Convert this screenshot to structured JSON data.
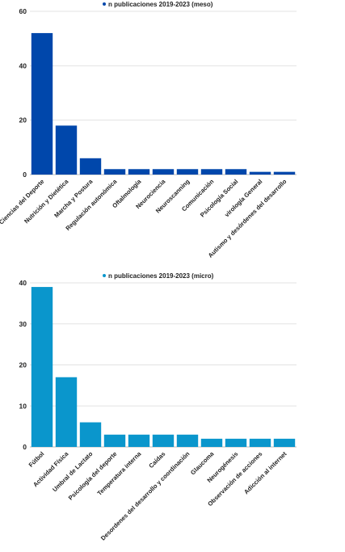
{
  "chart_data": [
    {
      "type": "bar",
      "legend": "n publicaciones 2019-2023 (meso)",
      "legend_position": "top",
      "color": "#0047ab",
      "grid": true,
      "ylim": [
        0,
        60
      ],
      "yticks": [
        0,
        20,
        40,
        60
      ],
      "categories": [
        "Ciencias del Deporte",
        "Nutrición y Dietética",
        "Marcha y Postura",
        "Regulación autonómica",
        "Oftalmología",
        "Neurociencia",
        "Neuroscanning",
        "Comunicación",
        "Psicología Social",
        "virología General",
        "Autismo y desórdenes del desarrollo"
      ],
      "series": [
        {
          "name": "n publicaciones 2019-2023 (meso)",
          "values": [
            52,
            18,
            6,
            2,
            2,
            2,
            2,
            2,
            2,
            1,
            1
          ]
        }
      ]
    },
    {
      "type": "bar",
      "legend": "n publicaciones 2019-2023 (micro)",
      "legend_position": "top",
      "color": "#0a96cc",
      "grid": true,
      "ylim": [
        0,
        40
      ],
      "yticks": [
        0,
        10,
        20,
        30,
        40
      ],
      "categories": [
        "Fútbol",
        "Actividad Física",
        "Umbral de Lactato",
        "Psicología del deporte",
        "Temperatura interna",
        "Caídas",
        "Desordenes del desarrollo y coordinación",
        "Glaucoma",
        "Neurogénesis",
        "Observación de acciones",
        "Adicción al internet"
      ],
      "series": [
        {
          "name": "n publicaciones 2019-2023 (micro)",
          "values": [
            39,
            17,
            6,
            3,
            3,
            3,
            3,
            2,
            2,
            2,
            2
          ]
        }
      ]
    }
  ]
}
